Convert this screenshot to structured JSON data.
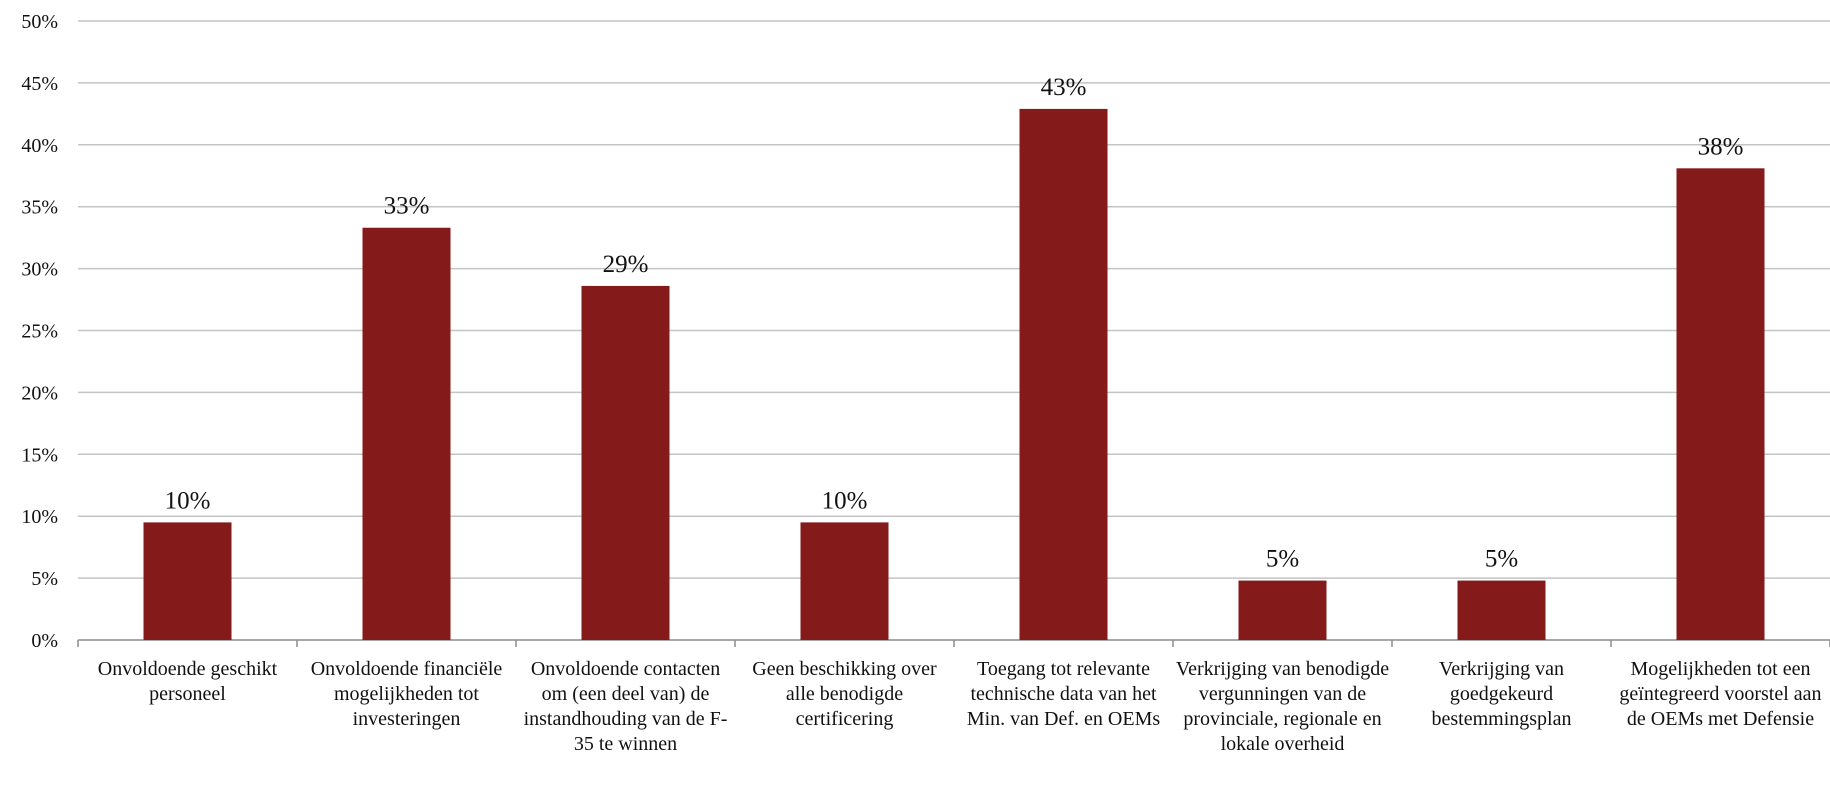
{
  "chart_data": {
    "type": "bar",
    "categories": [
      "Onvoldoende geschikt personeel",
      "Onvoldoende financiële mogelijkheden tot investeringen",
      "Onvoldoende contacten om (een deel van) de instandhouding van de F-35 te winnen",
      "Geen beschikking over alle benodigde certificering",
      "Toegang tot relevante technische data van het Min. van Def. en OEMs",
      "Verkrijging van benodigde vergunningen van de provinciale, regionale en lokale overheid",
      "Verkrijging van goedgekeurd bestemmingsplan",
      "Mogelijkheden tot een geïntegreerd voorstel aan de OEMs met Defensie"
    ],
    "values": [
      9.5,
      33.3,
      28.6,
      9.5,
      42.9,
      4.8,
      4.8,
      38.1
    ],
    "value_labels": [
      "10%",
      "33%",
      "29%",
      "10%",
      "43%",
      "5%",
      "5%",
      "38%"
    ],
    "color": "#841a1a",
    "ylim": [
      0,
      50
    ],
    "yticks": [
      {
        "value": 0,
        "label": "0%"
      },
      {
        "value": 5,
        "label": "5%"
      },
      {
        "value": 10,
        "label": "10%"
      },
      {
        "value": 15,
        "label": "15%"
      },
      {
        "value": 20,
        "label": "20%"
      },
      {
        "value": 25,
        "label": "25%"
      },
      {
        "value": 30,
        "label": "30%"
      },
      {
        "value": 35,
        "label": "35%"
      },
      {
        "value": 40,
        "label": "40%"
      },
      {
        "value": 45,
        "label": "45%"
      },
      {
        "value": 50,
        "label": "50%"
      }
    ],
    "grid": true
  }
}
